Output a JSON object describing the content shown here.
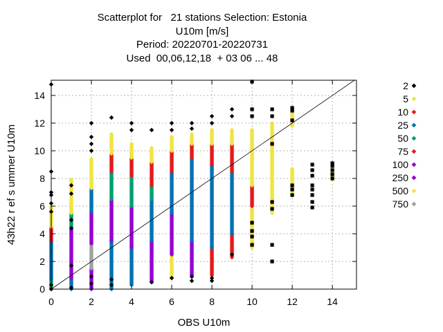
{
  "title_lines": [
    "Scatterplot for   21 stations Selection: Estonia",
    "U10m [m/s]",
    "Period: 20220701-20220731",
    "Used  00,06,12,18  + 03 06 ... 48"
  ],
  "chart_data": {
    "type": "scatter",
    "xlabel": "OBS U10m",
    "ylabel": "43h22 r ef s ummer U10m",
    "xlim": [
      0,
      15.2
    ],
    "ylim": [
      0,
      15.1
    ],
    "xticks": [
      0,
      2,
      4,
      6,
      8,
      10,
      12,
      14
    ],
    "yticks": [
      0,
      2,
      4,
      6,
      8,
      10,
      12,
      14
    ],
    "grid": true,
    "diagonal_line": true,
    "legend_position": "right",
    "series": [
      {
        "name": "2",
        "color": "#000000",
        "marker": "diamond"
      },
      {
        "name": "5",
        "color": "#f0e442",
        "marker": "diamond"
      },
      {
        "name": "10",
        "color": "#e31a1c",
        "marker": "diamond"
      },
      {
        "name": "25",
        "color": "#0072b2",
        "marker": "diamond"
      },
      {
        "name": "50",
        "color": "#009e73",
        "marker": "diamond"
      },
      {
        "name": "75",
        "color": "#e41a1c",
        "marker": "diamond"
      },
      {
        "name": "100",
        "color": "#9400d3",
        "marker": "diamond"
      },
      {
        "name": "250",
        "color": "#8b00c8",
        "marker": "diamond"
      },
      {
        "name": "500",
        "color": "#f5e042",
        "marker": "diamond"
      },
      {
        "name": "750",
        "color": "#a0a0a0",
        "marker": "diamond"
      }
    ],
    "columns": [
      {
        "x": 0,
        "bands": [
          [
            0,
            0.7,
            "#009e73"
          ],
          [
            0.7,
            3.5,
            "#0072b2"
          ],
          [
            3.5,
            4.5,
            "#e31a1c"
          ],
          [
            4.5,
            6,
            "#f0e442"
          ]
        ],
        "outliers": [
          0,
          0.3,
          5.6,
          6.2,
          6.8,
          7.0,
          8.5,
          14.8
        ]
      },
      {
        "x": 1,
        "bands": [
          [
            0,
            0.8,
            "#0072b2"
          ],
          [
            0.8,
            4.5,
            "#9400d3"
          ],
          [
            4.5,
            5.5,
            "#009e73"
          ],
          [
            5.5,
            7.9,
            "#f0e442"
          ]
        ],
        "outliers": [
          0.1,
          1.7,
          4.4,
          5.0,
          6.9,
          7.5
        ]
      },
      {
        "x": 2,
        "bands": [
          [
            0,
            1.5,
            "#9400d3"
          ],
          [
            1.5,
            3.3,
            "#a0a0a0"
          ],
          [
            3.3,
            5.6,
            "#9400d3"
          ],
          [
            5.6,
            7.3,
            "#0072b2"
          ],
          [
            7.3,
            9.4,
            "#f0e442"
          ]
        ],
        "outliers": [
          0.4,
          0.9,
          10.0,
          10.5,
          11.0,
          12.0
        ]
      },
      {
        "x": 3,
        "bands": [
          [
            0,
            3.5,
            "#0072b2"
          ],
          [
            3.5,
            6.5,
            "#9400d3"
          ],
          [
            6.5,
            8.5,
            "#009e73"
          ],
          [
            8.5,
            9.8,
            "#e31a1c"
          ],
          [
            9.8,
            11.2,
            "#f0e442"
          ]
        ],
        "outliers": [
          0.3,
          0.7,
          12.4
        ]
      },
      {
        "x": 4,
        "bands": [
          [
            0.3,
            3.0,
            "#0072b2"
          ],
          [
            3.0,
            6.0,
            "#9400d3"
          ],
          [
            6.0,
            8.2,
            "#009e73"
          ],
          [
            8.2,
            9.5,
            "#e31a1c"
          ],
          [
            9.5,
            10.5,
            "#f0e442"
          ]
        ],
        "outliers": [
          11.5,
          12.0
        ]
      },
      {
        "x": 5,
        "bands": [
          [
            0.5,
            3.5,
            "#9400d3"
          ],
          [
            3.5,
            6.5,
            "#0072b2"
          ],
          [
            6.5,
            7.5,
            "#009e73"
          ],
          [
            7.5,
            9.2,
            "#e31a1c"
          ],
          [
            9.2,
            10.2,
            "#f0e442"
          ]
        ],
        "outliers": [
          0.5,
          11.5
        ]
      },
      {
        "x": 6,
        "bands": [
          [
            0.8,
            2.5,
            "#f0e442"
          ],
          [
            2.5,
            5.5,
            "#9400d3"
          ],
          [
            5.5,
            8.5,
            "#0072b2"
          ],
          [
            8.5,
            10.0,
            "#e31a1c"
          ],
          [
            10.0,
            11.0,
            "#f0e442"
          ]
        ],
        "outliers": [
          0.8,
          11.5,
          12.0
        ]
      },
      {
        "x": 7,
        "bands": [
          [
            1.0,
            3.5,
            "#9400d3"
          ],
          [
            3.5,
            9.5,
            "#0072b2"
          ],
          [
            9.5,
            10.5,
            "#e31a1c"
          ],
          [
            10.5,
            11.2,
            "#f0e442"
          ]
        ],
        "outliers": [
          0.6,
          0.9,
          11.6,
          12.0
        ]
      },
      {
        "x": 8,
        "bands": [
          [
            1.0,
            3.0,
            "#e31a1c"
          ],
          [
            3.0,
            9.0,
            "#0072b2"
          ],
          [
            9.0,
            10.5,
            "#e31a1c"
          ],
          [
            10.5,
            11.5,
            "#f0e442"
          ]
        ],
        "outliers": [
          0.6,
          0.8,
          12.0,
          12.5
        ]
      },
      {
        "x": 9,
        "bands": [
          [
            2.3,
            4.0,
            "#e31a1c"
          ],
          [
            4.0,
            8.5,
            "#0072b2"
          ],
          [
            8.5,
            10.5,
            "#e31a1c"
          ],
          [
            10.5,
            11.5,
            "#f0e442"
          ]
        ],
        "outliers": [
          2.5,
          12.5,
          13.0
        ]
      },
      {
        "x": 10,
        "bands": [
          [
            3.0,
            6.0,
            "#f0e442"
          ],
          [
            6.0,
            7.5,
            "#e31a1c"
          ],
          [
            7.5,
            11.5,
            "#f0e442"
          ]
        ],
        "outliers": [
          3.2,
          3.8,
          4.2,
          4.8,
          12.5,
          13.0,
          15.0
        ]
      },
      {
        "x": 11,
        "bands": [
          [
            5.5,
            8.5,
            "#f0e442"
          ],
          [
            8.5,
            12.0,
            "#f0e442"
          ]
        ],
        "outliers": [
          2.0,
          3.2,
          5.8,
          6.3,
          10.5,
          12.5,
          13.0
        ]
      },
      {
        "x": 12,
        "bands": [
          [
            7.0,
            8.7,
            "#f0e442"
          ],
          [
            11.8,
            13.0,
            "#f0e442"
          ]
        ],
        "outliers": [
          6.8,
          7.2,
          7.5,
          12.2,
          12.9,
          13.1
        ]
      },
      {
        "x": 13,
        "bands": [],
        "outliers": [
          5.9,
          6.3,
          6.8,
          7.2,
          7.5,
          8.2,
          8.6,
          9.0
        ]
      },
      {
        "x": 14,
        "bands": [
          [
            7.9,
            8.5,
            "#f0e442"
          ]
        ],
        "outliers": [
          8.0,
          8.3,
          8.6,
          8.9,
          9.1
        ]
      }
    ]
  }
}
